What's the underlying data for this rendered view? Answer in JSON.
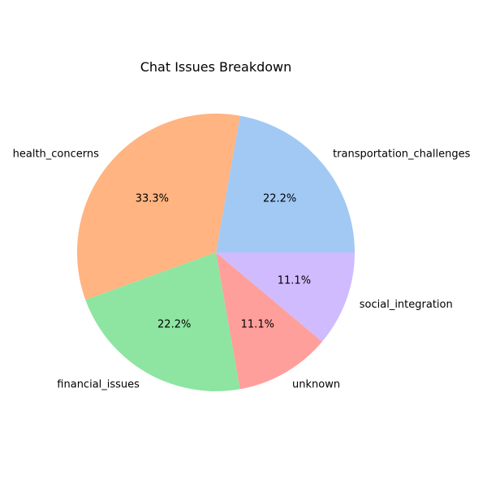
{
  "chart_data": {
    "type": "pie",
    "title": "Chat Issues Breakdown",
    "categories": [
      "transportation_challenges",
      "health_concerns",
      "financial_issues",
      "unknown",
      "social_integration"
    ],
    "values": [
      22.2,
      33.3,
      22.2,
      11.1,
      11.1
    ],
    "percent_labels": [
      "22.2%",
      "33.3%",
      "22.2%",
      "11.1%",
      "11.1%"
    ],
    "colors": [
      "#a1c9f4",
      "#ffb482",
      "#8de5a1",
      "#ff9f9b",
      "#d0bbff"
    ],
    "start_angle_deg": 0,
    "direction": "counterclockwise",
    "legend": "none"
  }
}
